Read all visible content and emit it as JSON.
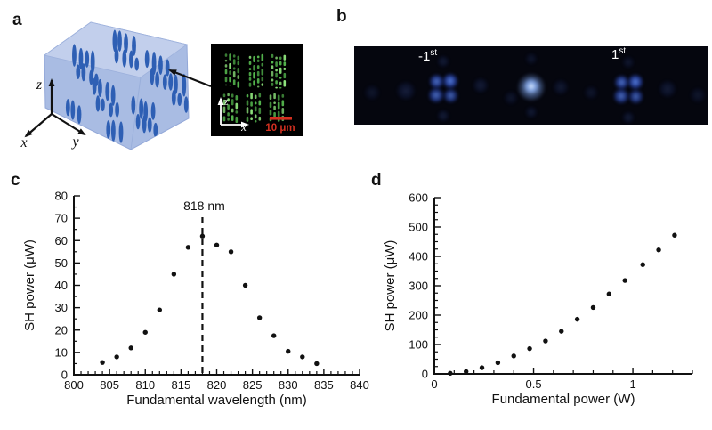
{
  "colors": {
    "box_face": "#a9bce3",
    "box_top": "#c2cfec",
    "domain_blue": "#2e5fb4",
    "inset_green": "#55b84e",
    "inset_green_bright": "#8fe57d",
    "scalebar_red": "#d43020",
    "beam_blue": "#3a62c8",
    "ink": "#111111",
    "panel_b_bg": "#05060e",
    "background": "#ffffff"
  },
  "panel_a": {
    "label": "a",
    "axes": {
      "x": "x",
      "y": "y",
      "z": "z"
    },
    "inset": {
      "axes": {
        "x": "x",
        "z": "z"
      },
      "scale_bar_label": "10 μm"
    }
  },
  "panel_b": {
    "label": "b",
    "orders": [
      {
        "base": "-1",
        "sup": "st"
      },
      {
        "base": "1",
        "sup": "st"
      }
    ]
  },
  "panel_c": {
    "label": "c"
  },
  "panel_d": {
    "label": "d"
  },
  "chart_data": [
    {
      "id": "c",
      "type": "scatter",
      "xlabel": "Fundamental wavelength (nm)",
      "ylabel": "SH power (μW)",
      "xlim": [
        800,
        840
      ],
      "ylim": [
        0,
        80
      ],
      "x": [
        804,
        806,
        808,
        810,
        812,
        814,
        816,
        818,
        820,
        822,
        824,
        826,
        828,
        830,
        832,
        834
      ],
      "y": [
        5.5,
        8,
        12,
        19,
        29,
        45,
        57,
        62,
        58,
        55,
        40,
        25.5,
        17.5,
        10.5,
        8,
        5
      ],
      "xticks": {
        "major_step": 5,
        "minor_step": 1
      },
      "yticks": {
        "major_step": 10,
        "minor_step": 5
      },
      "grid": false,
      "legend": false,
      "annotation": {
        "type": "dashed_vline",
        "x": 818,
        "label": "818 nm"
      }
    },
    {
      "id": "d",
      "type": "scatter",
      "xlabel": "Fundamental power (W)",
      "ylabel": "SH power (μW)",
      "xlim": [
        0,
        1.3
      ],
      "ylim": [
        0,
        600
      ],
      "x": [
        0.08,
        0.16,
        0.24,
        0.32,
        0.4,
        0.48,
        0.56,
        0.64,
        0.72,
        0.8,
        0.88,
        0.96,
        1.05,
        1.13,
        1.21
      ],
      "y": [
        2,
        8,
        21,
        38,
        61,
        86,
        112,
        145,
        186,
        226,
        272,
        318,
        372,
        422,
        472
      ],
      "xticks": {
        "major": [
          0,
          0.5,
          1
        ],
        "major_labels": [
          "0",
          "0.5",
          "1"
        ],
        "minor_step": 0.1
      },
      "yticks": {
        "major_step": 100,
        "minor_step": 25
      },
      "grid": false,
      "legend": false
    }
  ]
}
